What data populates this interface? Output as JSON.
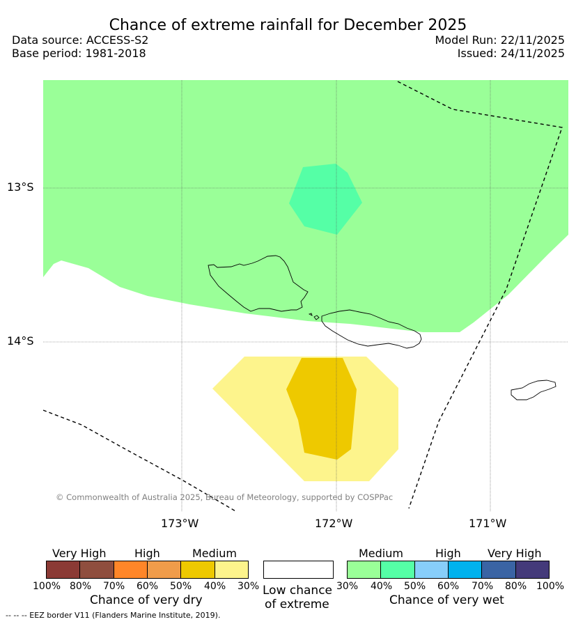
{
  "title": "Chance of extreme rainfall for December 2025",
  "header": {
    "data_source": "Data source: ACCESS-S2",
    "base_period": "Base period: 1981-2018",
    "model_run": "Model Run: 22/11/2025",
    "issued": "Issued: 24/11/2025"
  },
  "map": {
    "lat_labels": [
      "13°S",
      "14°S"
    ],
    "lon_labels": [
      "173°W",
      "172°W",
      "171°W"
    ],
    "copyright": "© Commonwealth of Australia 2025, Bureau of Meteorology, supported by COSPPac",
    "colors": {
      "wet_medium_30_40": "#9aff98",
      "wet_medium_40_50": "#55ffa6",
      "dry_medium_30_40": "#fdf48c",
      "dry_medium_40_50": "#eec900",
      "low_chance": "#ffffff"
    }
  },
  "legend": {
    "dry": {
      "headers": [
        "Very High",
        "High",
        "Medium"
      ],
      "ticks": [
        "100%",
        "80%",
        "70%",
        "60%",
        "50%",
        "40%",
        "30%"
      ],
      "colors": [
        "#8b3a35",
        "#8f4e3e",
        "#ff8628",
        "#f09c4a",
        "#eec900",
        "#fdf48c"
      ],
      "label": "Chance of very dry"
    },
    "low": {
      "label_line1": "Low chance",
      "label_line2": "of extreme",
      "color": "#ffffff"
    },
    "wet": {
      "headers": [
        "Medium",
        "High",
        "Very High"
      ],
      "ticks": [
        "30%",
        "40%",
        "50%",
        "60%",
        "70%",
        "80%",
        "100%"
      ],
      "colors": [
        "#9aff98",
        "#55ffa6",
        "#87cefa",
        "#00b2ee",
        "#3a64a4",
        "#443a7a"
      ],
      "label": "Chance of very wet"
    }
  },
  "footnote": "--  --  -- EEZ border V11 (Flanders Marine Institute, 2019)."
}
